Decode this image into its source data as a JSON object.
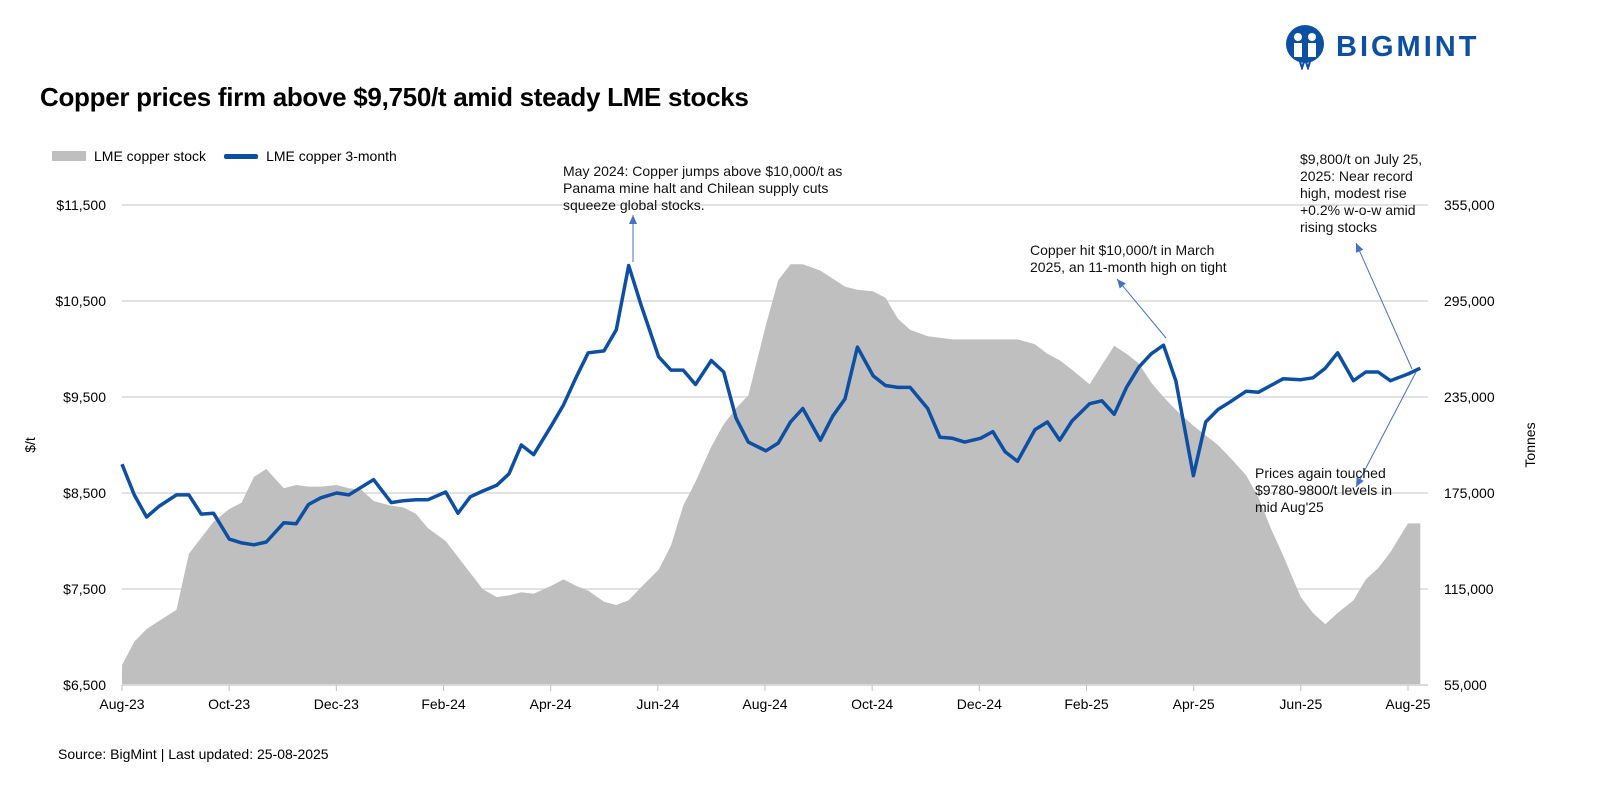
{
  "header": {
    "title": "Copper prices firm above $9,750/t amid steady LME stocks",
    "logo_text": "BIGMINT",
    "brand_color": "#0d4fa3"
  },
  "footer": {
    "source": "Source: BigMint | Last updated: 25-08-2025"
  },
  "chart_data": {
    "type": "line+area",
    "title": "Copper prices firm above $9,750/t amid steady LME stocks",
    "ylabel_left": "$/t",
    "ylabel_right": "Tonnes",
    "ylim_left": [
      6500,
      11500
    ],
    "ylim_right": [
      55000,
      355000
    ],
    "left_ticks": [
      "$6,500",
      "$7,500",
      "$8,500",
      "$9,500",
      "$10,500",
      "$11,500"
    ],
    "right_ticks": [
      "55,000",
      "115,000",
      "175,000",
      "235,000",
      "295,000",
      "355,000"
    ],
    "x_ticks": [
      "Aug-23",
      "Oct-23",
      "Dec-23",
      "Feb-24",
      "Apr-24",
      "Jun-24",
      "Aug-24",
      "Oct-24",
      "Dec-24",
      "Feb-25",
      "Apr-25",
      "Jun-25",
      "Aug-25"
    ],
    "grid": "horizontal",
    "legend_position": "top-left",
    "series": [
      {
        "name": "LME copper stock",
        "type": "area",
        "axis": "right",
        "color": "#bfbfbf"
      },
      {
        "name": "LME copper 3-month",
        "type": "line",
        "axis": "left",
        "color": "#0d4fa3"
      }
    ],
    "dates": [
      "2023-08-01",
      "2023-08-08",
      "2023-08-15",
      "2023-08-22",
      "2023-09-01",
      "2023-09-08",
      "2023-09-15",
      "2023-09-22",
      "2023-10-01",
      "2023-10-08",
      "2023-10-15",
      "2023-10-22",
      "2023-11-01",
      "2023-11-08",
      "2023-11-15",
      "2023-11-22",
      "2023-12-01",
      "2023-12-08",
      "2023-12-15",
      "2023-12-22",
      "2024-01-01",
      "2024-01-08",
      "2024-01-15",
      "2024-01-22",
      "2024-02-01",
      "2024-02-08",
      "2024-02-15",
      "2024-02-22",
      "2024-03-01",
      "2024-03-08",
      "2024-03-15",
      "2024-03-22",
      "2024-04-01",
      "2024-04-08",
      "2024-04-15",
      "2024-04-22",
      "2024-05-01",
      "2024-05-08",
      "2024-05-15",
      "2024-05-22",
      "2024-06-01",
      "2024-06-08",
      "2024-06-15",
      "2024-06-22",
      "2024-07-01",
      "2024-07-08",
      "2024-07-15",
      "2024-07-22",
      "2024-08-01",
      "2024-08-08",
      "2024-08-15",
      "2024-08-22",
      "2024-09-01",
      "2024-09-08",
      "2024-09-15",
      "2024-09-22",
      "2024-10-01",
      "2024-10-08",
      "2024-10-15",
      "2024-10-22",
      "2024-11-01",
      "2024-11-08",
      "2024-11-15",
      "2024-11-22",
      "2024-12-01",
      "2024-12-08",
      "2024-12-15",
      "2024-12-22",
      "2025-01-01",
      "2025-01-08",
      "2025-01-15",
      "2025-01-22",
      "2025-02-01",
      "2025-02-08",
      "2025-02-15",
      "2025-02-22",
      "2025-03-01",
      "2025-03-08",
      "2025-03-15",
      "2025-03-22",
      "2025-04-01",
      "2025-04-08",
      "2025-04-15",
      "2025-04-22",
      "2025-05-01",
      "2025-05-08",
      "2025-05-15",
      "2025-05-22",
      "2025-06-01",
      "2025-06-08",
      "2025-06-15",
      "2025-06-22",
      "2025-07-01",
      "2025-07-08",
      "2025-07-15",
      "2025-07-22",
      "2025-08-01",
      "2025-08-08"
    ],
    "price": [
      8800,
      8480,
      8250,
      8360,
      8480,
      8480,
      8280,
      8290,
      8020,
      7980,
      7960,
      7990,
      8190,
      8180,
      8380,
      8450,
      8500,
      8480,
      8560,
      8640,
      8400,
      8420,
      8430,
      8430,
      8510,
      8290,
      8460,
      8520,
      8580,
      8700,
      9000,
      8900,
      9200,
      9420,
      9700,
      9960,
      9980,
      10200,
      10870,
      10460,
      9920,
      9780,
      9780,
      9630,
      9880,
      9760,
      9280,
      9030,
      8940,
      9020,
      9240,
      9380,
      9050,
      9300,
      9480,
      10020,
      9720,
      9620,
      9600,
      9600,
      9380,
      9080,
      9070,
      9030,
      9070,
      9140,
      8930,
      8830,
      9160,
      9240,
      9050,
      9250,
      9430,
      9460,
      9320,
      9600,
      9810,
      9950,
      10040,
      9670,
      8680,
      9240,
      9370,
      9450,
      9560,
      9550,
      9620,
      9690,
      9680,
      9700,
      9800,
      9960,
      9670,
      9760,
      9760,
      9670,
      9740,
      9800
    ],
    "stock": [
      67500,
      82000,
      90000,
      95000,
      102000,
      137000,
      147000,
      157000,
      165000,
      169000,
      185000,
      190000,
      178000,
      180000,
      179000,
      179000,
      180000,
      178000,
      177000,
      170000,
      167000,
      166000,
      162000,
      153000,
      145000,
      135000,
      125000,
      115000,
      110000,
      111000,
      113000,
      112000,
      117000,
      121000,
      117000,
      114000,
      107000,
      105000,
      108000,
      116000,
      127000,
      142000,
      167000,
      182000,
      204000,
      218000,
      228000,
      236000,
      280000,
      308000,
      318000,
      318000,
      314000,
      309000,
      304000,
      302000,
      301000,
      297000,
      284000,
      277000,
      273000,
      272000,
      271000,
      271000,
      271000,
      271000,
      271000,
      271000,
      268000,
      262000,
      258000,
      252000,
      243000,
      255000,
      267000,
      262000,
      256000,
      244000,
      235000,
      227000,
      217000,
      211000,
      205000,
      197000,
      186000,
      172000,
      153000,
      136000,
      110000,
      100000,
      93000,
      100000,
      108000,
      121000,
      128000,
      138000,
      156000,
      156000
    ],
    "annotations": [
      {
        "text": [
          "May 2024: Copper jumps above $10,000/t as",
          "Panama mine halt and Chilean supply cuts",
          "squeeze global stocks."
        ]
      },
      {
        "text": [
          "Copper hit $10,000/t in March",
          "2025, an 11-month high on tight"
        ]
      },
      {
        "text": [
          "$9,800/t on July 25,",
          "2025: Near record",
          "high, modest rise",
          "+0.2% w-o-w amid",
          "rising stocks"
        ]
      },
      {
        "text": [
          "Prices again touched",
          "$9780-9800/t levels in",
          "mid Aug'25"
        ]
      }
    ]
  }
}
